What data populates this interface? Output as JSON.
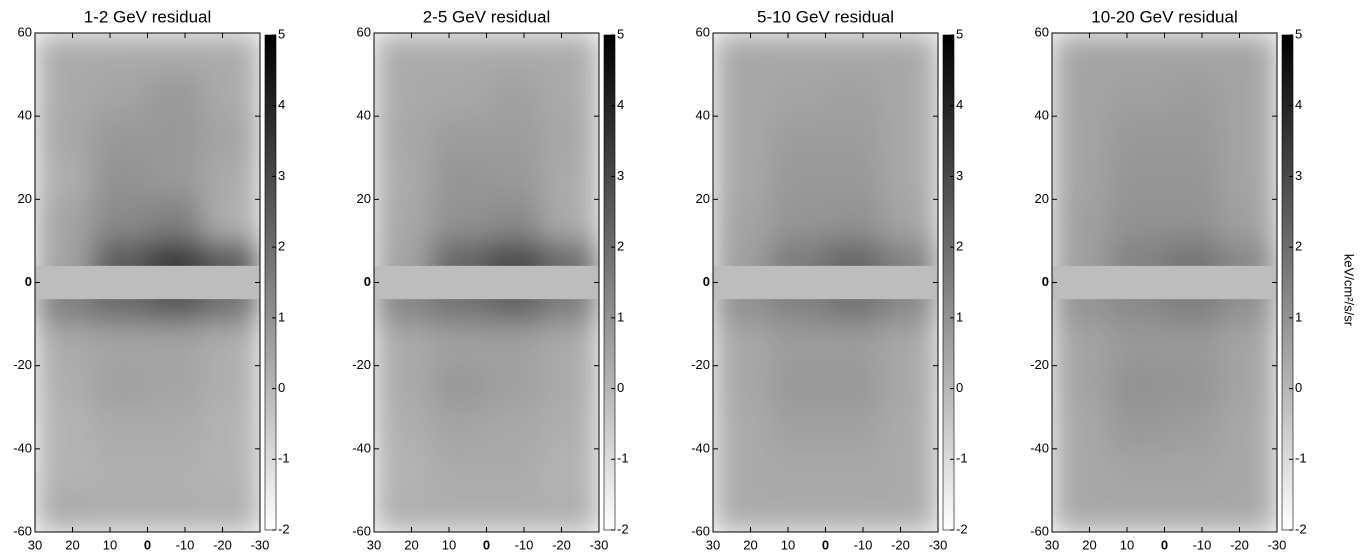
{
  "chart_data": [
    {
      "type": "heatmap",
      "title": "1-2 GeV residual",
      "xlim": [
        30,
        -30
      ],
      "xticks": [
        30,
        20,
        10,
        0,
        -10,
        -20,
        -30
      ],
      "ylim": [
        -60,
        60
      ],
      "yticks": [
        60,
        40,
        20,
        0,
        -20,
        -40,
        -60
      ],
      "x_bins": [
        30,
        15,
        0,
        -15,
        -30
      ],
      "y_bins": [
        60,
        50,
        40,
        30,
        20,
        10,
        0,
        -10,
        -20,
        -30,
        -40,
        -50,
        -60
      ],
      "values": [
        [
          0.3,
          0.3,
          0.3,
          0.3
        ],
        [
          0.3,
          0.5,
          0.8,
          0.3
        ],
        [
          0.4,
          0.8,
          0.8,
          0.5
        ],
        [
          0.2,
          1.0,
          0.8,
          0.3
        ],
        [
          0.5,
          1.2,
          1.5,
          0.2
        ],
        [
          0.5,
          2.5,
          3.5,
          2.5
        ],
        [
          1.5,
          2.0,
          2.5,
          1.8
        ],
        [
          0.3,
          0.5,
          0.5,
          0.2
        ],
        [
          0.2,
          0.6,
          0.5,
          0.2
        ],
        [
          0.1,
          0.3,
          0.3,
          0.1
        ],
        [
          0.1,
          0.2,
          0.2,
          0.1
        ],
        [
          0.3,
          0.2,
          0.2,
          0.2
        ]
      ],
      "mask_ylim": [
        -4,
        4
      ],
      "clim": [
        -2,
        5
      ],
      "cticks": [
        -2,
        -1,
        0,
        1,
        2,
        3,
        4,
        5
      ]
    },
    {
      "type": "heatmap",
      "title": "2-5 GeV residual",
      "xlim": [
        30,
        -30
      ],
      "xticks": [
        30,
        20,
        10,
        0,
        -10,
        -20,
        -30
      ],
      "ylim": [
        -60,
        60
      ],
      "yticks": [
        60,
        40,
        20,
        0,
        -20,
        -40,
        -60
      ],
      "x_bins": [
        30,
        15,
        0,
        -15,
        -30
      ],
      "y_bins": [
        60,
        50,
        40,
        30,
        20,
        10,
        0,
        -10,
        -20,
        -30,
        -40,
        -50,
        -60
      ],
      "values": [
        [
          0.3,
          0.3,
          0.3,
          0.3
        ],
        [
          0.3,
          0.4,
          0.6,
          0.3
        ],
        [
          0.4,
          0.7,
          0.7,
          0.4
        ],
        [
          0.3,
          0.9,
          0.8,
          0.3
        ],
        [
          0.4,
          1.0,
          1.2,
          0.3
        ],
        [
          0.5,
          2.2,
          3.0,
          2.0
        ],
        [
          1.3,
          1.8,
          2.2,
          1.5
        ],
        [
          0.3,
          0.6,
          0.6,
          0.3
        ],
        [
          0.3,
          0.8,
          0.6,
          0.3
        ],
        [
          0.2,
          0.5,
          0.4,
          0.2
        ],
        [
          0.1,
          0.3,
          0.3,
          0.1
        ],
        [
          0.2,
          0.2,
          0.2,
          0.2
        ]
      ],
      "mask_ylim": [
        -4,
        4
      ],
      "clim": [
        -2,
        5
      ],
      "cticks": [
        -2,
        -1,
        0,
        1,
        2,
        3,
        4,
        5
      ]
    },
    {
      "type": "heatmap",
      "title": "5-10 GeV residual",
      "xlim": [
        30,
        -30
      ],
      "xticks": [
        30,
        20,
        10,
        0,
        -10,
        -20,
        -30
      ],
      "ylim": [
        -60,
        60
      ],
      "yticks": [
        60,
        40,
        20,
        0,
        -20,
        -40,
        -60
      ],
      "x_bins": [
        30,
        15,
        0,
        -15,
        -30
      ],
      "y_bins": [
        60,
        50,
        40,
        30,
        20,
        10,
        0,
        -10,
        -20,
        -30,
        -40,
        -50,
        -60
      ],
      "values": [
        [
          0.4,
          0.4,
          0.4,
          0.4
        ],
        [
          0.4,
          0.5,
          0.6,
          0.4
        ],
        [
          0.4,
          0.7,
          0.7,
          0.4
        ],
        [
          0.4,
          0.8,
          0.8,
          0.4
        ],
        [
          0.5,
          0.9,
          1.0,
          0.5
        ],
        [
          0.6,
          1.6,
          2.2,
          1.4
        ],
        [
          1.0,
          1.4,
          1.8,
          1.2
        ],
        [
          0.4,
          0.7,
          0.7,
          0.4
        ],
        [
          0.4,
          0.8,
          0.8,
          0.4
        ],
        [
          0.3,
          0.6,
          0.6,
          0.3
        ],
        [
          0.3,
          0.4,
          0.4,
          0.3
        ],
        [
          0.3,
          0.3,
          0.3,
          0.3
        ]
      ],
      "mask_ylim": [
        -4,
        4
      ],
      "clim": [
        -2,
        5
      ],
      "cticks": [
        -2,
        -1,
        0,
        1,
        2,
        3,
        4,
        5
      ]
    },
    {
      "type": "heatmap",
      "title": "10-20 GeV residual",
      "xlim": [
        30,
        -30
      ],
      "xticks": [
        30,
        20,
        10,
        0,
        -10,
        -20,
        -30
      ],
      "ylim": [
        -60,
        60
      ],
      "yticks": [
        60,
        40,
        20,
        0,
        -20,
        -40,
        -60
      ],
      "x_bins": [
        30,
        15,
        0,
        -15,
        -30
      ],
      "y_bins": [
        60,
        50,
        40,
        30,
        20,
        10,
        0,
        -10,
        -20,
        -30,
        -40,
        -50,
        -60
      ],
      "values": [
        [
          0.5,
          0.5,
          0.5,
          0.5
        ],
        [
          0.5,
          0.6,
          0.7,
          0.5
        ],
        [
          0.5,
          0.8,
          0.8,
          0.5
        ],
        [
          0.5,
          0.9,
          0.9,
          0.5
        ],
        [
          0.6,
          1.0,
          1.0,
          0.6
        ],
        [
          0.6,
          1.4,
          1.8,
          1.2
        ],
        [
          0.9,
          1.2,
          1.5,
          1.0
        ],
        [
          0.5,
          0.8,
          0.8,
          0.5
        ],
        [
          0.5,
          1.0,
          0.9,
          0.5
        ],
        [
          0.4,
          0.8,
          0.7,
          0.4
        ],
        [
          0.4,
          0.5,
          0.5,
          0.4
        ],
        [
          0.4,
          0.4,
          0.4,
          0.4
        ]
      ],
      "mask_ylim": [
        -4,
        4
      ],
      "clim": [
        -2,
        5
      ],
      "cticks": [
        -2,
        -1,
        0,
        1,
        2,
        3,
        4,
        5
      ],
      "colorbar_label": "keV/cm²/s/sr"
    }
  ]
}
